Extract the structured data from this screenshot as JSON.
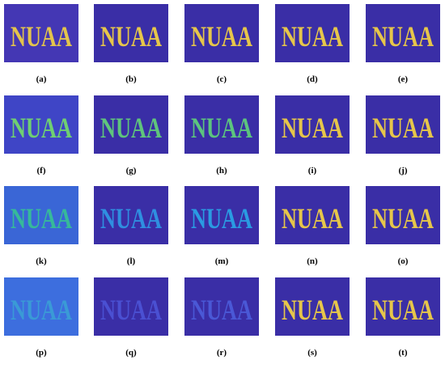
{
  "panels": [
    {
      "label": "(a)",
      "text": "NUAA",
      "bg_color": "#4437b4",
      "text_color": "#e3c44c"
    },
    {
      "label": "(b)",
      "text": "NUAA",
      "bg_color": "#3a2ea6",
      "text_color": "#e6c64a"
    },
    {
      "label": "(c)",
      "text": "NUAA",
      "bg_color": "#3a2ea6",
      "text_color": "#e6c64a"
    },
    {
      "label": "(d)",
      "text": "NUAA",
      "bg_color": "#3a2ea6",
      "text_color": "#e6c64a"
    },
    {
      "label": "(e)",
      "text": "NUAA",
      "bg_color": "#3a2ea6",
      "text_color": "#e6c64a"
    },
    {
      "label": "(f)",
      "text": "NUAA",
      "bg_color": "#3f45c6",
      "text_color": "#6fcf72"
    },
    {
      "label": "(g)",
      "text": "NUAA",
      "bg_color": "#3a2ea6",
      "text_color": "#5fc47c"
    },
    {
      "label": "(h)",
      "text": "NUAA",
      "bg_color": "#3a2ea6",
      "text_color": "#5cc47e"
    },
    {
      "label": "(i)",
      "text": "NUAA",
      "bg_color": "#3a2ea6",
      "text_color": "#e6c64a"
    },
    {
      "label": "(j)",
      "text": "NUAA",
      "bg_color": "#3a2ea6",
      "text_color": "#e6c64a"
    },
    {
      "label": "(k)",
      "text": "NUAA",
      "bg_color": "#3a66d6",
      "text_color": "#36b99a"
    },
    {
      "label": "(l)",
      "text": "NUAA",
      "bg_color": "#3a2ea6",
      "text_color": "#2f8fe0"
    },
    {
      "label": "(m)",
      "text": "NUAA",
      "bg_color": "#3a2ea6",
      "text_color": "#2a9be2"
    },
    {
      "label": "(n)",
      "text": "NUAA",
      "bg_color": "#3a2ea6",
      "text_color": "#e6c64a"
    },
    {
      "label": "(o)",
      "text": "NUAA",
      "bg_color": "#3a2ea6",
      "text_color": "#e6c64a"
    },
    {
      "label": "(p)",
      "text": "NUAA",
      "bg_color": "#3d6ede",
      "text_color": "#3a9ad6"
    },
    {
      "label": "(q)",
      "text": "NUAA",
      "bg_color": "#3a2ea6",
      "text_color": "#4a50d2"
    },
    {
      "label": "(r)",
      "text": "NUAA",
      "bg_color": "#3a2ea6",
      "text_color": "#4a58d6"
    },
    {
      "label": "(s)",
      "text": "NUAA",
      "bg_color": "#3a2ea6",
      "text_color": "#e6c64a"
    },
    {
      "label": "(t)",
      "text": "NUAA",
      "bg_color": "#3a2ea6",
      "text_color": "#e6c64a"
    }
  ]
}
